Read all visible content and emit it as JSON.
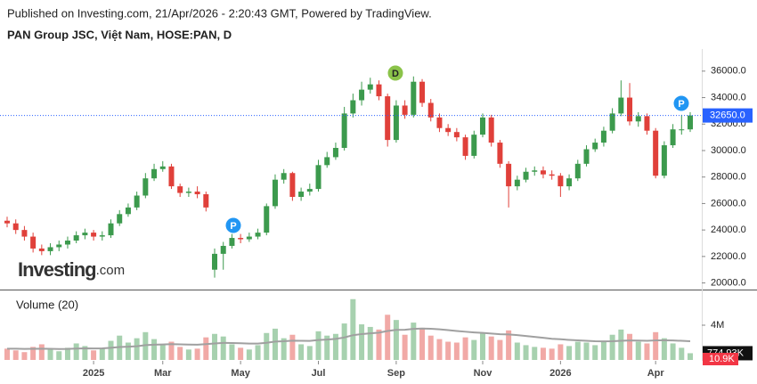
{
  "chart_data": {
    "type": "candlestick",
    "subtitle": "Published on Investing.com, 21/Apr/2026 - 2:20:43 GMT, Powered by TradingView.",
    "title": "PAN Group JSC, Việt Nam, HOSE:PAN, D",
    "logo_main": "Investing",
    "logo_suffix": ".com",
    "up_color": "#3c9a4d",
    "down_color": "#e0403a",
    "categories": [
      null,
      null,
      null,
      null,
      null,
      null,
      null,
      null,
      null,
      null,
      "2025",
      null,
      null,
      null,
      null,
      null,
      null,
      null,
      "Mar",
      null,
      null,
      null,
      null,
      null,
      null,
      null,
      null,
      "May",
      null,
      null,
      null,
      null,
      null,
      null,
      null,
      null,
      "Jul",
      null,
      null,
      null,
      null,
      null,
      null,
      null,
      null,
      "Sep",
      null,
      null,
      null,
      null,
      null,
      null,
      null,
      null,
      null,
      "Nov",
      null,
      null,
      null,
      null,
      null,
      null,
      null,
      null,
      "2026",
      null,
      null,
      null,
      null,
      null,
      null,
      null,
      null,
      null,
      null,
      "Apr",
      null,
      null,
      null,
      null
    ],
    "open": [
      24700,
      24500,
      24000,
      23500,
      22600,
      22400,
      22700,
      22900,
      23200,
      23600,
      23800,
      23500,
      23600,
      24500,
      25200,
      25700,
      26600,
      27900,
      28600,
      28800,
      27300,
      26800,
      26900,
      26700,
      21000,
      22200,
      22800,
      23400,
      23300,
      23500,
      23800,
      25800,
      27800,
      28300,
      26500,
      26900,
      27100,
      28900,
      29500,
      30200,
      32800,
      33800,
      34600,
      35000,
      34100,
      30800,
      33400,
      32700,
      35200,
      33600,
      32500,
      31700,
      31400,
      31000,
      29600,
      31200,
      32500,
      30600,
      29000,
      27300,
      27800,
      28400,
      28500,
      28200,
      28100,
      27300,
      27900,
      29000,
      30100,
      30600,
      31500,
      32800,
      34000,
      32200,
      32600,
      31500,
      28100,
      30400,
      31600,
      31600
    ],
    "high": [
      25000,
      24800,
      24300,
      23800,
      22900,
      23000,
      23200,
      23500,
      23900,
      24100,
      24000,
      23900,
      24800,
      25500,
      26000,
      26900,
      28300,
      29000,
      29200,
      29000,
      27500,
      27200,
      27300,
      26900,
      22600,
      23100,
      23700,
      23700,
      23800,
      24100,
      26000,
      28200,
      28600,
      28400,
      27200,
      27500,
      29300,
      29900,
      30600,
      33300,
      34300,
      35200,
      35500,
      35300,
      34300,
      33800,
      33800,
      35600,
      35400,
      33900,
      32800,
      32000,
      31700,
      31200,
      31500,
      32800,
      32700,
      30800,
      29200,
      28100,
      28700,
      28800,
      28800,
      28500,
      28300,
      28200,
      29300,
      30400,
      30900,
      31800,
      33200,
      35300,
      35100,
      32900,
      32800,
      31700,
      30700,
      32000,
      32700,
      32900
    ],
    "low": [
      24200,
      23700,
      23200,
      22300,
      22100,
      22100,
      22400,
      22600,
      23000,
      23300,
      23200,
      23200,
      23400,
      24300,
      25000,
      25500,
      26400,
      27700,
      28400,
      27100,
      26500,
      26500,
      26400,
      25400,
      20400,
      21000,
      22600,
      23000,
      23100,
      23300,
      23600,
      25600,
      27500,
      26200,
      26200,
      26600,
      26900,
      28700,
      29300,
      30000,
      32500,
      33400,
      34300,
      33800,
      30300,
      30600,
      32400,
      32500,
      33300,
      32200,
      31400,
      31100,
      30700,
      29300,
      29400,
      31000,
      30300,
      28700,
      25700,
      27000,
      27600,
      28100,
      27900,
      27800,
      26500,
      27000,
      27700,
      28800,
      29900,
      30300,
      31300,
      32600,
      31900,
      31800,
      31200,
      27900,
      27900,
      30200,
      31200,
      31400
    ],
    "close": [
      24500,
      24000,
      23500,
      22600,
      22400,
      22700,
      22900,
      23200,
      23600,
      23800,
      23500,
      23600,
      24500,
      25200,
      25700,
      26600,
      27900,
      28600,
      28800,
      27300,
      26800,
      26900,
      26700,
      25700,
      22200,
      22800,
      23400,
      23300,
      23500,
      23800,
      25800,
      27800,
      28300,
      26500,
      26900,
      27100,
      28900,
      29500,
      30200,
      32800,
      33800,
      34600,
      35000,
      34100,
      30800,
      33400,
      32700,
      35200,
      33600,
      32500,
      31700,
      31400,
      31000,
      29600,
      31200,
      32500,
      30600,
      29000,
      27300,
      27800,
      28400,
      28500,
      28200,
      28100,
      27300,
      27900,
      29000,
      30100,
      30600,
      31500,
      32800,
      34000,
      32200,
      32600,
      31500,
      28100,
      30400,
      31600,
      31600,
      32650
    ],
    "ylim": [
      19500,
      37200
    ],
    "yticks": [
      {
        "value": 20000,
        "label": "20000.0"
      },
      {
        "value": 22000,
        "label": "22000.0"
      },
      {
        "value": 24000,
        "label": "24000.0"
      },
      {
        "value": 26000,
        "label": "26000.0"
      },
      {
        "value": 28000,
        "label": "28000.0"
      },
      {
        "value": 30000,
        "label": "30000.0"
      },
      {
        "value": 32000,
        "label": "32000.0"
      },
      {
        "value": 34000,
        "label": "34000.0"
      },
      {
        "value": 36000,
        "label": "36000.0"
      }
    ],
    "last_price_label": "32650.0",
    "events": [
      {
        "label": "P",
        "color": "#2196f3"
      },
      {
        "label": "D",
        "color": "#8bc34a"
      },
      {
        "label": "P",
        "color": "#2196f3"
      }
    ],
    "volume": {
      "label": "Volume (20)",
      "values": [
        1300000,
        1100000,
        900000,
        1500000,
        1800000,
        1200000,
        1000000,
        1400000,
        1900000,
        1600000,
        1100000,
        1300000,
        2200000,
        2800000,
        2000000,
        2500000,
        3200000,
        2400000,
        1800000,
        2100000,
        1500000,
        1200000,
        1300000,
        2600000,
        3000000,
        2700000,
        1800000,
        1400000,
        1200000,
        1700000,
        3100000,
        3600000,
        2500000,
        2900000,
        1800000,
        1600000,
        3300000,
        2800000,
        3000000,
        4200000,
        7000000,
        4100000,
        3800000,
        3500000,
        5200000,
        4600000,
        2900000,
        4300000,
        3700000,
        2800000,
        2400000,
        2100000,
        2000000,
        2600000,
        2300000,
        3100000,
        2700000,
        2300000,
        3400000,
        2000000,
        1700000,
        1500000,
        1400000,
        1300000,
        1800000,
        1600000,
        2100000,
        2000000,
        1700000,
        2200000,
        2900000,
        3500000,
        3000000,
        2100000,
        1900000,
        3200000,
        2500000,
        1900000,
        1400000,
        774930
      ],
      "ma_values": [
        1300000,
        1290000,
        1270000,
        1280000,
        1300000,
        1280000,
        1260000,
        1270000,
        1310000,
        1330000,
        1320000,
        1330000,
        1400000,
        1490000,
        1520000,
        1580000,
        1700000,
        1760000,
        1780000,
        1820000,
        1800000,
        1770000,
        1760000,
        1820000,
        1900000,
        1960000,
        1950000,
        1920000,
        1880000,
        1880000,
        1980000,
        2110000,
        2150000,
        2220000,
        2210000,
        2190000,
        2290000,
        2350000,
        2420000,
        2590000,
        2850000,
        2980000,
        3070000,
        3140000,
        3330000,
        3460000,
        3480000,
        3580000,
        3620000,
        3590000,
        3520000,
        3430000,
        3330000,
        3250000,
        3170000,
        3110000,
        3040000,
        2960000,
        2940000,
        2860000,
        2760000,
        2650000,
        2550000,
        2440000,
        2380000,
        2310000,
        2260000,
        2210000,
        2160000,
        2140000,
        2150000,
        2200000,
        2240000,
        2230000,
        2210000,
        2250000,
        2260000,
        2240000,
        2200000,
        2150000
      ],
      "ma_color": "#a0a0a0",
      "ylim": [
        0,
        8000000
      ],
      "yticks": [
        {
          "value": 4000000,
          "label": "4M"
        }
      ],
      "last_label": "774.93K",
      "extra_label": "10.9K"
    }
  }
}
